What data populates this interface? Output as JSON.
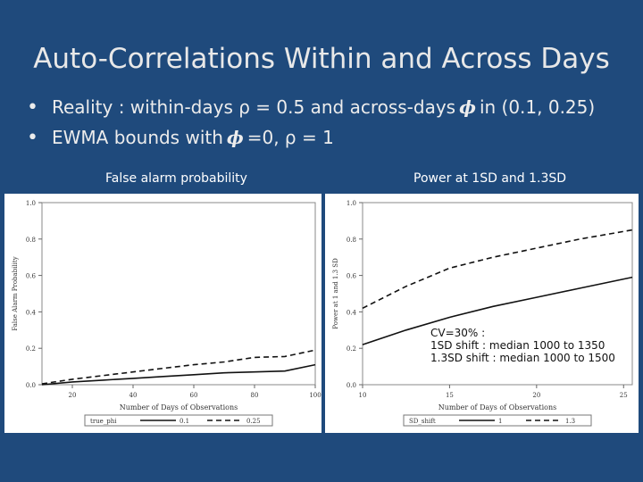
{
  "slide": {
    "title": "Auto-Correlations Within and Across Days",
    "bullets": [
      {
        "pre": "Reality : within-days ρ = 0.5 and across-days",
        "phi": "𝝓",
        "post": "in (0.1, 0.25)"
      },
      {
        "pre": "EWMA bounds with",
        "phi": "𝝓",
        "post": "=0, ρ = 1"
      }
    ],
    "left_heading": "False alarm probability",
    "right_heading": "Power at 1SD and 1.3SD",
    "annotation": [
      "CV=30% :",
      "1SD shift : median 1000 to 1350",
      "1.3SD shift :  median 1000 to 1500"
    ]
  },
  "colors": {
    "background": "#1f4a7c",
    "text": "#ececec"
  },
  "chart_data": [
    {
      "type": "line",
      "xlabel": "Number of Days of Observations",
      "ylabel": "False Alarm Probability",
      "xlim": [
        10,
        100
      ],
      "ylim": [
        0,
        1.0
      ],
      "xticks": [
        20,
        40,
        60,
        80,
        100
      ],
      "xtick_labels": [
        "20",
        "40",
        "60",
        "80",
        "100"
      ],
      "yticks": [
        0,
        0.2,
        0.4,
        0.6,
        0.8,
        1.0
      ],
      "ytick_labels": [
        "0.0",
        "0.2",
        "0.4",
        "0.6",
        "0.8",
        "1.0"
      ],
      "legend_title": "true_phi",
      "series": [
        {
          "name": "0.1",
          "dash": "solid",
          "x": [
            10,
            20,
            30,
            40,
            50,
            60,
            70,
            80,
            90,
            100
          ],
          "values": [
            0.0,
            0.015,
            0.025,
            0.035,
            0.045,
            0.055,
            0.065,
            0.07,
            0.075,
            0.11
          ]
        },
        {
          "name": "0.25",
          "dash": "dashed",
          "x": [
            10,
            20,
            30,
            40,
            50,
            60,
            70,
            80,
            90,
            100
          ],
          "values": [
            0.005,
            0.03,
            0.05,
            0.07,
            0.09,
            0.11,
            0.125,
            0.15,
            0.155,
            0.19
          ]
        }
      ]
    },
    {
      "type": "line",
      "xlabel": "Number of Days of Observations",
      "ylabel": "Power at 1 and 1.3 SD",
      "xlim": [
        10,
        25.5
      ],
      "ylim": [
        0,
        1.0
      ],
      "xticks": [
        10,
        15,
        20,
        25
      ],
      "xtick_labels": [
        "10",
        "15",
        "20",
        "25"
      ],
      "yticks": [
        0,
        0.2,
        0.4,
        0.6,
        0.8,
        1.0
      ],
      "ytick_labels": [
        "0.0",
        "0.2",
        "0.4",
        "0.6",
        "0.8",
        "1.0"
      ],
      "legend_title": "SD_shift",
      "series": [
        {
          "name": "1",
          "dash": "solid",
          "x": [
            10,
            12.5,
            15,
            17.5,
            20,
            22.5,
            25.5
          ],
          "values": [
            0.22,
            0.3,
            0.37,
            0.43,
            0.48,
            0.53,
            0.59
          ]
        },
        {
          "name": "1.3",
          "dash": "dashed",
          "x": [
            10,
            12.5,
            15,
            17.5,
            20,
            22.5,
            25.5
          ],
          "values": [
            0.42,
            0.54,
            0.64,
            0.7,
            0.75,
            0.8,
            0.85
          ]
        }
      ]
    }
  ]
}
